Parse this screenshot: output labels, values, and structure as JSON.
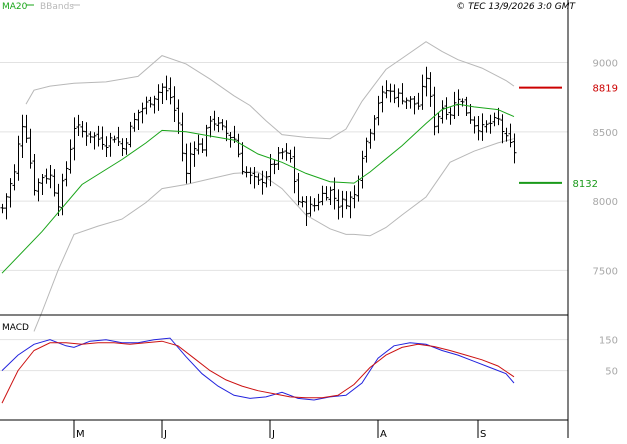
{
  "header": {
    "ma_label": "MA20",
    "bb_label": "BBands",
    "copyright": "© TEC 13/9/2026 3:0 GMT"
  },
  "colors": {
    "ma": "#1aa51a",
    "upper_line": "#cc0000",
    "lower_line": "#1a9a1a",
    "macd": "#2222dd",
    "signal": "#cc1111",
    "bands": "#b8b8b8",
    "bars": "#000000",
    "grid": "#e2e2e2",
    "axis_text": "#a8a8a8"
  },
  "chart_data": [
    {
      "type": "ohlc",
      "name": "price",
      "ylim": [
        7200,
        9350
      ],
      "y_ticks": [
        {
          "label": "9000",
          "value": 9000
        },
        {
          "label": "8500",
          "value": 8500
        },
        {
          "label": "8000",
          "value": 8000
        },
        {
          "label": "7500",
          "value": 7500
        }
      ],
      "x_range": [
        0,
        140
      ],
      "x_ticks": [
        {
          "label": "M",
          "index": 18
        },
        {
          "label": "J",
          "index": 40
        },
        {
          "label": "J",
          "index": 67
        },
        {
          "label": "A",
          "index": 94
        },
        {
          "label": "S",
          "index": 119
        }
      ],
      "level_upper": {
        "label": "8819",
        "value": 8819
      },
      "level_lower": {
        "label": "8132",
        "value": 8132
      },
      "bars_keypoints": [
        [
          0,
          7950
        ],
        [
          2,
          8120
        ],
        [
          3,
          8200
        ],
        [
          4,
          8400
        ],
        [
          5,
          8560
        ],
        [
          6,
          8480
        ],
        [
          7,
          8280
        ],
        [
          8,
          8100
        ],
        [
          9,
          8130
        ],
        [
          10,
          8180
        ],
        [
          12,
          8180
        ],
        [
          14,
          7990
        ],
        [
          16,
          8240
        ],
        [
          18,
          8540
        ],
        [
          20,
          8500
        ],
        [
          22,
          8480
        ],
        [
          24,
          8450
        ],
        [
          26,
          8420
        ],
        [
          28,
          8470
        ],
        [
          30,
          8380
        ],
        [
          32,
          8520
        ],
        [
          34,
          8640
        ],
        [
          36,
          8700
        ],
        [
          38,
          8760
        ],
        [
          40,
          8820
        ],
        [
          42,
          8750
        ],
        [
          44,
          8560
        ],
        [
          45,
          8350
        ],
        [
          46,
          8190
        ],
        [
          47,
          8340
        ],
        [
          48,
          8410
        ],
        [
          50,
          8390
        ],
        [
          52,
          8600
        ],
        [
          54,
          8540
        ],
        [
          56,
          8490
        ],
        [
          58,
          8450
        ],
        [
          60,
          8240
        ],
        [
          62,
          8170
        ],
        [
          64,
          8130
        ],
        [
          66,
          8190
        ],
        [
          68,
          8280
        ],
        [
          70,
          8350
        ],
        [
          72,
          8300
        ],
        [
          74,
          8000
        ],
        [
          76,
          7940
        ],
        [
          78,
          7970
        ],
        [
          80,
          8050
        ],
        [
          82,
          8070
        ],
        [
          84,
          7980
        ],
        [
          86,
          8000
        ],
        [
          88,
          8040
        ],
        [
          90,
          8340
        ],
        [
          92,
          8520
        ],
        [
          94,
          8720
        ],
        [
          96,
          8800
        ],
        [
          98,
          8770
        ],
        [
          100,
          8750
        ],
        [
          102,
          8720
        ],
        [
          104,
          8690
        ],
        [
          106,
          8900
        ],
        [
          108,
          8560
        ],
        [
          110,
          8680
        ],
        [
          112,
          8640
        ],
        [
          114,
          8760
        ],
        [
          116,
          8650
        ],
        [
          118,
          8560
        ],
        [
          120,
          8520
        ],
        [
          122,
          8560
        ],
        [
          124,
          8580
        ],
        [
          126,
          8440
        ],
        [
          128,
          8360
        ]
      ],
      "ma20": [
        [
          0,
          7480
        ],
        [
          10,
          7780
        ],
        [
          20,
          8120
        ],
        [
          30,
          8300
        ],
        [
          36,
          8420
        ],
        [
          40,
          8510
        ],
        [
          46,
          8500
        ],
        [
          52,
          8470
        ],
        [
          58,
          8440
        ],
        [
          64,
          8340
        ],
        [
          70,
          8280
        ],
        [
          76,
          8200
        ],
        [
          82,
          8140
        ],
        [
          88,
          8130
        ],
        [
          92,
          8210
        ],
        [
          100,
          8400
        ],
        [
          106,
          8560
        ],
        [
          110,
          8660
        ],
        [
          114,
          8700
        ],
        [
          118,
          8680
        ],
        [
          124,
          8660
        ],
        [
          128,
          8610
        ]
      ],
      "bb_upper": [
        [
          6,
          8700
        ],
        [
          8,
          8800
        ],
        [
          12,
          8830
        ],
        [
          18,
          8850
        ],
        [
          26,
          8860
        ],
        [
          34,
          8900
        ],
        [
          40,
          9050
        ],
        [
          46,
          8990
        ],
        [
          52,
          8880
        ],
        [
          58,
          8760
        ],
        [
          62,
          8690
        ],
        [
          66,
          8580
        ],
        [
          70,
          8480
        ],
        [
          76,
          8460
        ],
        [
          82,
          8450
        ],
        [
          86,
          8520
        ],
        [
          90,
          8720
        ],
        [
          96,
          8950
        ],
        [
          100,
          9030
        ],
        [
          106,
          9150
        ],
        [
          110,
          9080
        ],
        [
          114,
          9020
        ],
        [
          120,
          8960
        ],
        [
          126,
          8870
        ],
        [
          128,
          8830
        ]
      ],
      "bb_lower": [
        [
          8,
          7060
        ],
        [
          10,
          7200
        ],
        [
          14,
          7500
        ],
        [
          18,
          7760
        ],
        [
          24,
          7820
        ],
        [
          30,
          7870
        ],
        [
          36,
          7990
        ],
        [
          40,
          8090
        ],
        [
          46,
          8120
        ],
        [
          52,
          8160
        ],
        [
          58,
          8200
        ],
        [
          64,
          8210
        ],
        [
          70,
          8090
        ],
        [
          76,
          7900
        ],
        [
          82,
          7800
        ],
        [
          86,
          7760
        ],
        [
          88,
          7760
        ],
        [
          92,
          7750
        ],
        [
          96,
          7810
        ],
        [
          100,
          7900
        ],
        [
          106,
          8030
        ],
        [
          112,
          8280
        ],
        [
          118,
          8360
        ],
        [
          124,
          8420
        ],
        [
          128,
          8450
        ]
      ]
    },
    {
      "type": "line",
      "name": "macd",
      "title": "MACD",
      "ylim": [
        -100,
        220
      ],
      "y_ticks": [
        {
          "label": "150",
          "value": 150
        },
        {
          "label": "50",
          "value": 50
        }
      ],
      "series": [
        {
          "key": "macd",
          "points": [
            [
              0,
              50
            ],
            [
              4,
              100
            ],
            [
              8,
              135
            ],
            [
              12,
              150
            ],
            [
              16,
              130
            ],
            [
              18,
              125
            ],
            [
              22,
              145
            ],
            [
              26,
              150
            ],
            [
              30,
              140
            ],
            [
              34,
              140
            ],
            [
              38,
              150
            ],
            [
              42,
              155
            ],
            [
              46,
              95
            ],
            [
              50,
              40
            ],
            [
              54,
              0
            ],
            [
              58,
              -30
            ],
            [
              62,
              -40
            ],
            [
              66,
              -35
            ],
            [
              70,
              -20
            ],
            [
              74,
              -40
            ],
            [
              78,
              -45
            ],
            [
              82,
              -35
            ],
            [
              86,
              -30
            ],
            [
              90,
              10
            ],
            [
              94,
              90
            ],
            [
              98,
              130
            ],
            [
              102,
              140
            ],
            [
              106,
              135
            ],
            [
              110,
              115
            ],
            [
              114,
              100
            ],
            [
              118,
              80
            ],
            [
              122,
              60
            ],
            [
              126,
              40
            ],
            [
              128,
              10
            ]
          ]
        },
        {
          "key": "signal",
          "points": [
            [
              0,
              -55
            ],
            [
              4,
              50
            ],
            [
              8,
              115
            ],
            [
              12,
              140
            ],
            [
              16,
              140
            ],
            [
              20,
              135
            ],
            [
              24,
              140
            ],
            [
              28,
              140
            ],
            [
              32,
              135
            ],
            [
              36,
              140
            ],
            [
              40,
              145
            ],
            [
              44,
              130
            ],
            [
              48,
              90
            ],
            [
              52,
              50
            ],
            [
              56,
              20
            ],
            [
              60,
              0
            ],
            [
              64,
              -15
            ],
            [
              68,
              -25
            ],
            [
              72,
              -35
            ],
            [
              76,
              -38
            ],
            [
              80,
              -38
            ],
            [
              84,
              -30
            ],
            [
              88,
              5
            ],
            [
              92,
              60
            ],
            [
              96,
              100
            ],
            [
              100,
              125
            ],
            [
              104,
              135
            ],
            [
              108,
              128
            ],
            [
              112,
              115
            ],
            [
              116,
              100
            ],
            [
              120,
              85
            ],
            [
              124,
              65
            ],
            [
              128,
              30
            ]
          ]
        }
      ]
    }
  ]
}
